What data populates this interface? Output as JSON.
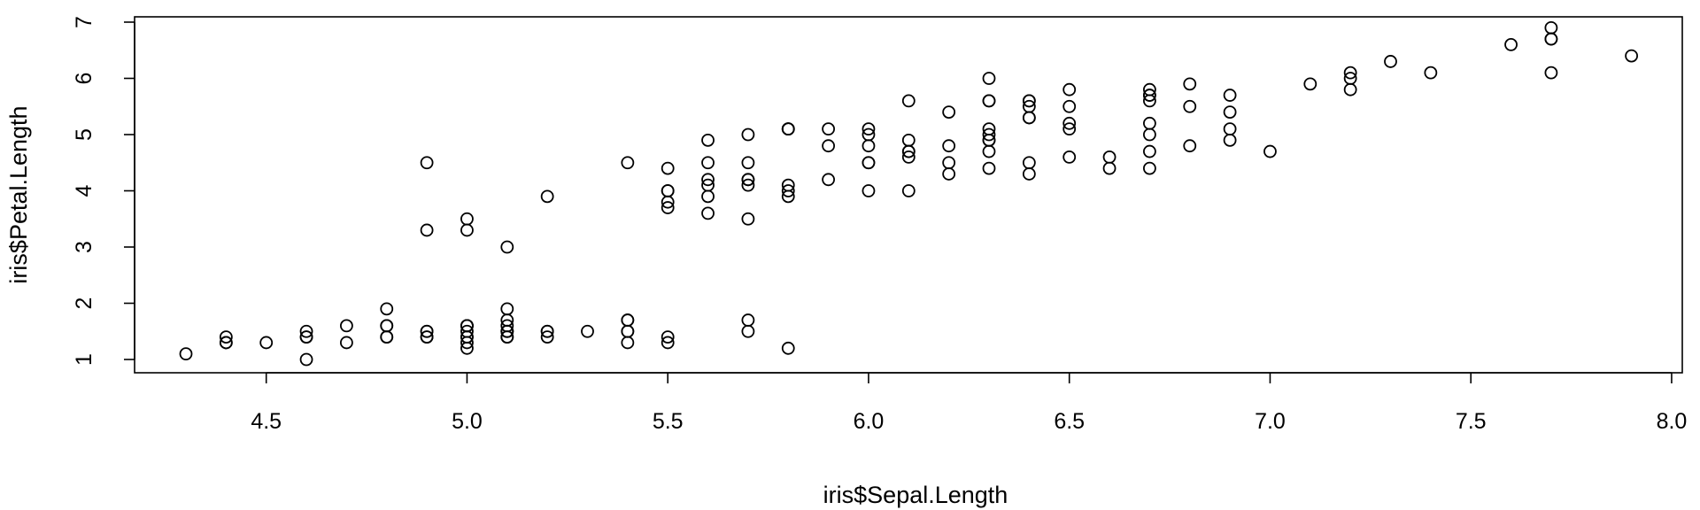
{
  "chart_data": {
    "type": "scatter",
    "title": "",
    "xlabel": "iris$Sepal.Length",
    "ylabel": "iris$Petal.Length",
    "xlim": [
      4.3,
      7.9
    ],
    "ylim": [
      1,
      6.9
    ],
    "xticks": [
      "4.5",
      "5.0",
      "5.5",
      "6.0",
      "6.5",
      "7.0",
      "7.5",
      "8.0"
    ],
    "yticks": [
      "1",
      "2",
      "3",
      "4",
      "5",
      "6",
      "7"
    ],
    "grid": false,
    "marker": "open-circle",
    "colors": {
      "marker": "#000000",
      "axis": "#000000",
      "background": "#ffffff"
    },
    "series": [
      {
        "x": [
          5.1,
          4.9,
          4.7,
          4.6,
          5.0,
          5.4,
          4.6,
          5.0,
          4.4,
          4.9,
          5.4,
          4.8,
          4.8,
          4.3,
          5.8,
          5.7,
          5.4,
          5.1,
          5.7,
          5.1,
          5.4,
          5.1,
          4.6,
          5.1,
          4.8,
          5.0,
          5.0,
          5.2,
          5.2,
          4.7,
          4.8,
          5.4,
          5.2,
          5.5,
          4.9,
          5.0,
          5.5,
          4.9,
          4.4,
          5.1,
          5.0,
          4.5,
          4.4,
          5.0,
          5.1,
          4.8,
          5.1,
          4.6,
          5.3,
          5.0,
          7.0,
          6.4,
          6.9,
          5.5,
          6.5,
          5.7,
          6.3,
          4.9,
          6.6,
          5.2,
          5.0,
          5.9,
          6.0,
          6.1,
          5.6,
          6.7,
          5.6,
          5.8,
          6.2,
          5.6,
          5.9,
          6.1,
          6.3,
          6.1,
          6.4,
          6.6,
          6.8,
          6.7,
          6.0,
          5.7,
          5.5,
          5.5,
          5.8,
          6.0,
          5.4,
          6.0,
          6.7,
          6.3,
          5.6,
          5.5,
          5.5,
          6.1,
          5.8,
          5.0,
          5.6,
          5.7,
          5.7,
          6.2,
          5.1,
          5.7,
          6.3,
          5.8,
          7.1,
          6.3,
          6.5,
          7.6,
          4.9,
          7.3,
          6.7,
          7.2,
          6.5,
          6.4,
          6.8,
          5.7,
          5.8,
          6.4,
          6.5,
          7.7,
          7.7,
          6.0,
          6.9,
          5.6,
          7.7,
          6.3,
          6.7,
          7.2,
          6.2,
          6.1,
          6.4,
          7.2,
          7.4,
          7.9,
          6.4,
          6.3,
          6.1,
          7.7,
          6.3,
          6.4,
          6.0,
          6.9,
          6.7,
          6.9,
          5.8,
          6.8,
          6.7,
          6.7,
          6.3,
          6.5,
          6.2,
          5.9
        ],
        "y": [
          1.4,
          1.4,
          1.3,
          1.5,
          1.4,
          1.7,
          1.4,
          1.5,
          1.4,
          1.5,
          1.5,
          1.6,
          1.4,
          1.1,
          1.2,
          1.5,
          1.3,
          1.4,
          1.7,
          1.5,
          1.7,
          1.5,
          1.0,
          1.7,
          1.9,
          1.6,
          1.6,
          1.5,
          1.4,
          1.6,
          1.6,
          1.5,
          1.5,
          1.4,
          1.5,
          1.2,
          1.3,
          1.4,
          1.3,
          1.5,
          1.3,
          1.3,
          1.3,
          1.6,
          1.9,
          1.4,
          1.6,
          1.4,
          1.5,
          1.4,
          4.7,
          4.5,
          4.9,
          4.0,
          4.6,
          4.5,
          4.7,
          3.3,
          4.6,
          3.9,
          3.5,
          4.2,
          4.0,
          4.7,
          3.6,
          4.4,
          4.5,
          4.1,
          4.5,
          3.9,
          4.8,
          4.0,
          4.9,
          4.7,
          4.3,
          4.4,
          4.8,
          5.0,
          4.5,
          3.5,
          3.8,
          3.7,
          3.9,
          5.1,
          4.5,
          4.5,
          4.7,
          4.4,
          4.1,
          4.0,
          4.4,
          4.6,
          4.0,
          3.3,
          4.2,
          4.2,
          4.2,
          4.3,
          3.0,
          4.1,
          6.0,
          5.1,
          5.9,
          5.6,
          5.8,
          6.6,
          4.5,
          6.3,
          5.8,
          6.1,
          5.1,
          5.3,
          5.5,
          5.0,
          5.1,
          5.3,
          5.5,
          6.7,
          6.9,
          5.0,
          5.7,
          4.9,
          6.7,
          4.9,
          5.7,
          6.0,
          4.8,
          4.9,
          5.6,
          5.8,
          6.1,
          6.4,
          5.6,
          5.1,
          5.6,
          6.1,
          5.6,
          5.5,
          4.8,
          5.4,
          5.6,
          5.1,
          5.1,
          5.9,
          5.7,
          5.2,
          5.0,
          5.2,
          5.4,
          5.1
        ]
      }
    ]
  }
}
